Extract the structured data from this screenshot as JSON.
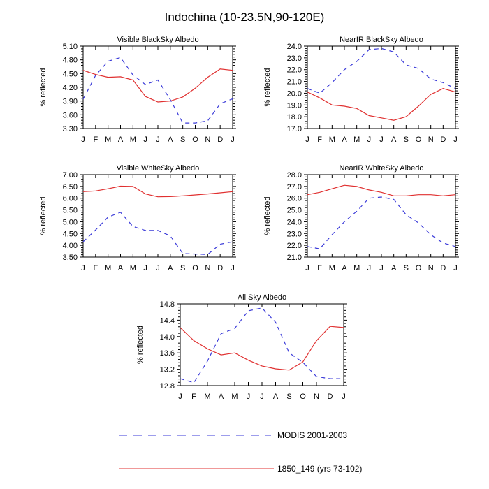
{
  "figure": {
    "title": "Indochina (10-23.5N,90-120E)"
  },
  "legend": {
    "position": "bottom-center",
    "entries": [
      {
        "label": "MODIS 2001-2003",
        "color": "#3b3bd9",
        "style": "dashed"
      },
      {
        "label": "1850_149 (yrs 73-102)",
        "color": "#e03030",
        "style": "solid"
      }
    ]
  },
  "chart_data": [
    {
      "type": "line",
      "title": "Visible BlackSky Albedo",
      "ylabel": "% reflected",
      "categories": [
        "J",
        "F",
        "M",
        "A",
        "M",
        "J",
        "J",
        "A",
        "S",
        "O",
        "N",
        "D",
        "J"
      ],
      "yticks": [
        "3.30",
        "3.60",
        "3.90",
        "4.20",
        "4.50",
        "4.80",
        "5.10"
      ],
      "ylim": [
        3.3,
        5.1
      ],
      "series": [
        {
          "name": "MODIS 2001-2003",
          "values": [
            3.94,
            4.46,
            4.77,
            4.85,
            4.47,
            4.26,
            4.36,
            3.93,
            3.42,
            3.42,
            3.47,
            3.84,
            3.95
          ]
        },
        {
          "name": "1850_149 (yrs 73-102)",
          "values": [
            4.57,
            4.48,
            4.42,
            4.43,
            4.36,
            4.0,
            3.88,
            3.9,
            3.99,
            4.18,
            4.42,
            4.6,
            4.57
          ]
        }
      ]
    },
    {
      "type": "line",
      "title": "NearIR BlackSky Albedo",
      "ylabel": "% reflected",
      "categories": [
        "J",
        "F",
        "M",
        "A",
        "M",
        "J",
        "J",
        "A",
        "S",
        "O",
        "N",
        "D",
        "J"
      ],
      "yticks": [
        "17.0",
        "18.0",
        "19.0",
        "20.0",
        "21.0",
        "22.0",
        "23.0",
        "24.0"
      ],
      "ylim": [
        17.0,
        24.0
      ],
      "series": [
        {
          "name": "MODIS 2001-2003",
          "values": [
            20.4,
            20.0,
            20.9,
            22.0,
            22.7,
            23.7,
            23.8,
            23.5,
            22.4,
            22.1,
            21.2,
            20.9,
            20.4
          ]
        },
        {
          "name": "1850_149 (yrs 73-102)",
          "values": [
            20.1,
            19.6,
            19.0,
            18.9,
            18.7,
            18.1,
            17.9,
            17.7,
            18.0,
            18.9,
            19.9,
            20.4,
            20.1
          ]
        }
      ]
    },
    {
      "type": "line",
      "title": "Visible WhiteSky Albedo",
      "ylabel": "% reflected",
      "categories": [
        "J",
        "F",
        "M",
        "A",
        "M",
        "J",
        "J",
        "A",
        "S",
        "O",
        "N",
        "D",
        "J"
      ],
      "yticks": [
        "3.50",
        "4.00",
        "4.50",
        "5.00",
        "5.50",
        "6.00",
        "6.50",
        "7.00"
      ],
      "ylim": [
        3.5,
        7.0
      ],
      "series": [
        {
          "name": "MODIS 2001-2003",
          "values": [
            4.15,
            4.65,
            5.2,
            5.4,
            4.8,
            4.63,
            4.63,
            4.4,
            3.65,
            3.63,
            3.61,
            4.05,
            4.15
          ]
        },
        {
          "name": "1850_149 (yrs 73-102)",
          "values": [
            6.28,
            6.31,
            6.4,
            6.51,
            6.5,
            6.18,
            6.06,
            6.07,
            6.1,
            6.14,
            6.18,
            6.23,
            6.28
          ]
        }
      ]
    },
    {
      "type": "line",
      "title": "NearIR WhiteSky Albedo",
      "ylabel": "% reflected",
      "categories": [
        "J",
        "F",
        "M",
        "A",
        "M",
        "J",
        "J",
        "A",
        "S",
        "O",
        "N",
        "D",
        "J"
      ],
      "yticks": [
        "21.0",
        "22.0",
        "23.0",
        "24.0",
        "25.0",
        "26.0",
        "27.0",
        "28.0"
      ],
      "ylim": [
        21.0,
        28.0
      ],
      "series": [
        {
          "name": "MODIS 2001-2003",
          "values": [
            21.9,
            21.7,
            22.9,
            24.0,
            24.9,
            26.0,
            26.1,
            25.9,
            24.6,
            23.9,
            22.9,
            22.2,
            21.9
          ]
        },
        {
          "name": "1850_149 (yrs 73-102)",
          "values": [
            26.3,
            26.5,
            26.8,
            27.1,
            27.0,
            26.7,
            26.5,
            26.2,
            26.2,
            26.3,
            26.3,
            26.2,
            26.3
          ]
        }
      ]
    },
    {
      "type": "line",
      "title": "All Sky Albedo",
      "ylabel": "% reflected",
      "categories": [
        "J",
        "F",
        "M",
        "A",
        "M",
        "J",
        "J",
        "A",
        "S",
        "O",
        "N",
        "D",
        "J"
      ],
      "yticks": [
        "12.8",
        "13.2",
        "13.6",
        "14.0",
        "14.4",
        "14.8"
      ],
      "ylim": [
        12.8,
        14.8
      ],
      "series": [
        {
          "name": "MODIS 2001-2003",
          "values": [
            12.97,
            12.87,
            13.4,
            14.07,
            14.2,
            14.63,
            14.7,
            14.35,
            13.6,
            13.37,
            13.02,
            12.97,
            12.97
          ]
        },
        {
          "name": "1850_149 (yrs 73-102)",
          "values": [
            14.22,
            13.9,
            13.7,
            13.55,
            13.6,
            13.42,
            13.28,
            13.21,
            13.18,
            13.38,
            13.9,
            14.25,
            14.22
          ]
        }
      ]
    }
  ]
}
